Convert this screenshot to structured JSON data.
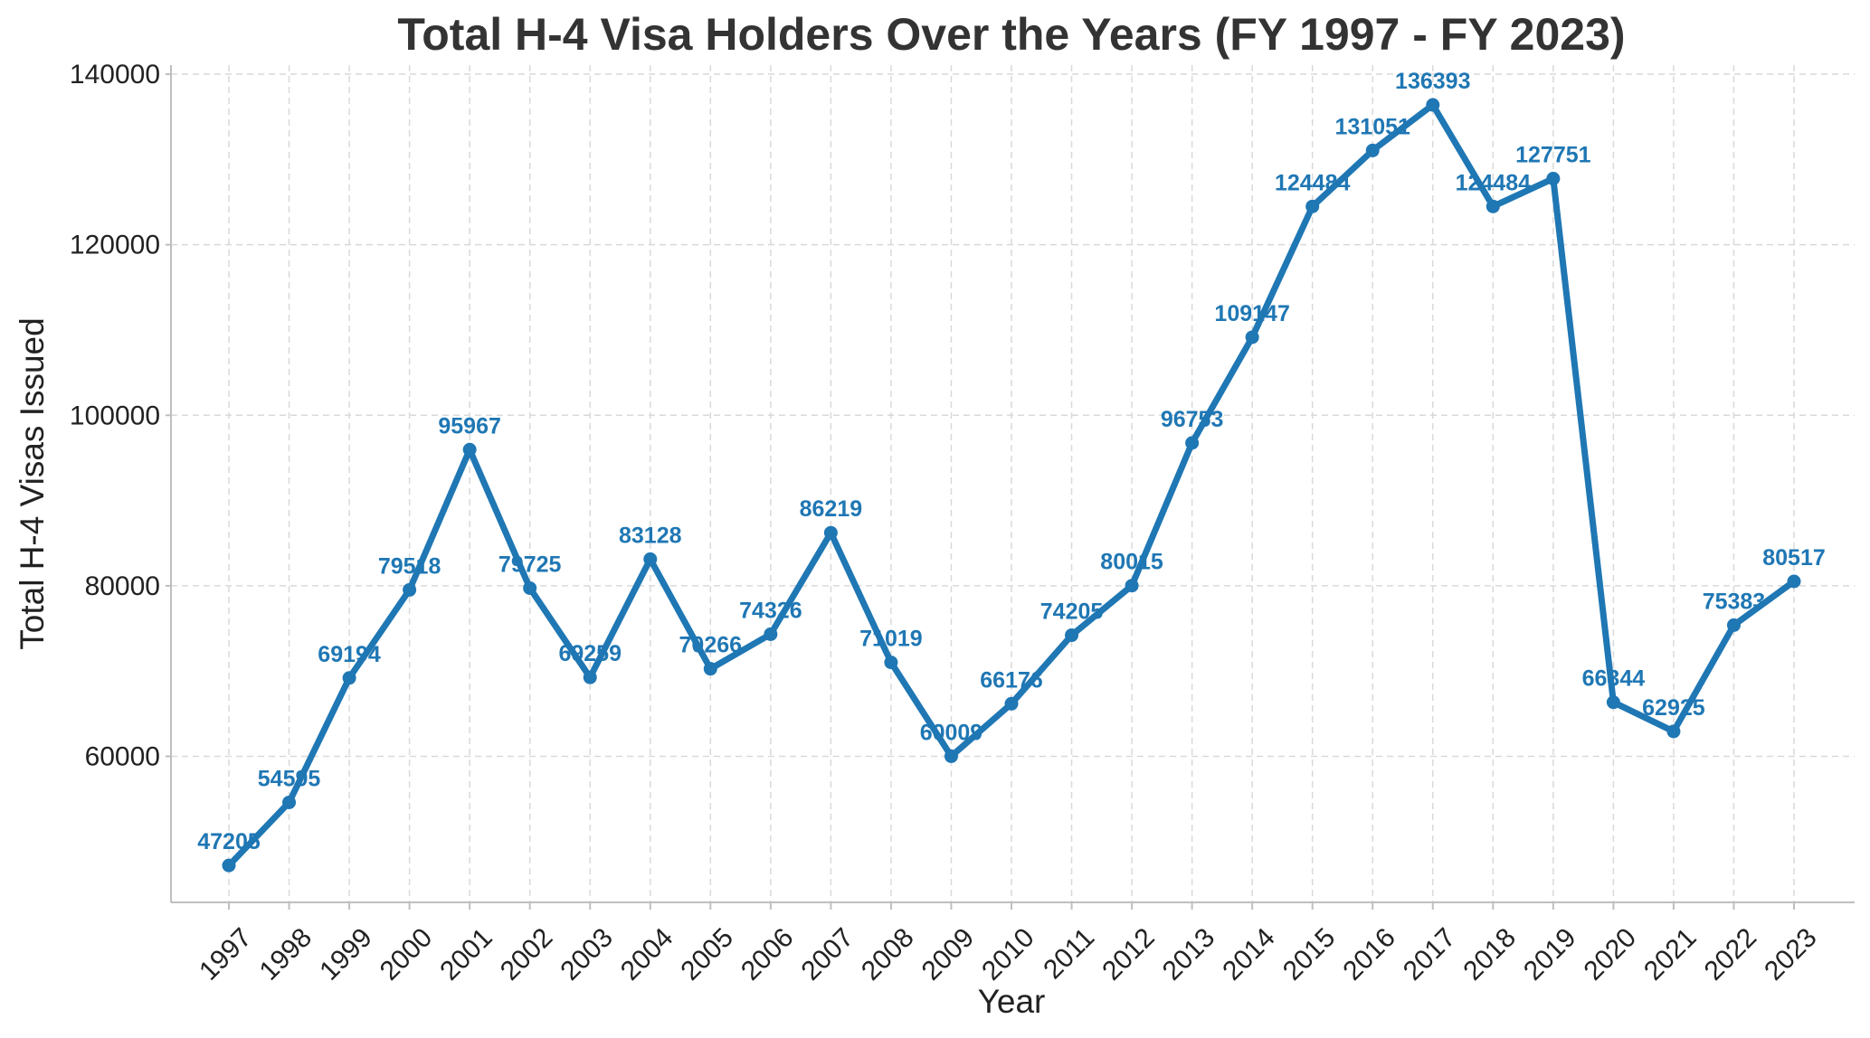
{
  "chart_data": {
    "type": "line",
    "title": "Total H-4 Visa Holders Over the Years (FY 1997 - FY 2023)",
    "xlabel": "Year",
    "ylabel": "Total H-4 Visas Issued",
    "x": [
      "1997",
      "1998",
      "1999",
      "2000",
      "2001",
      "2002",
      "2003",
      "2004",
      "2005",
      "2006",
      "2007",
      "2008",
      "2009",
      "2010",
      "2011",
      "2012",
      "2013",
      "2014",
      "2015",
      "2016",
      "2017",
      "2018",
      "2019",
      "2020",
      "2021",
      "2022",
      "2023"
    ],
    "series": [
      {
        "values": [
          47205,
          54595,
          69194,
          79518,
          95967,
          79725,
          69259,
          83128,
          70266,
          74326,
          86219,
          71019,
          60009,
          66176,
          74205,
          80015,
          96753,
          109147,
          124484,
          131051,
          136393,
          124484,
          127751,
          66344,
          62925,
          75383,
          80517
        ],
        "labels": [
          "47205",
          "54595",
          "69194",
          "79518",
          "95967",
          "79725",
          "69259",
          "83128",
          "70266",
          "74326",
          "86219",
          "71019",
          "60009",
          "66176",
          "74205",
          "80015",
          "96753",
          "109147",
          "124484",
          "131051",
          "136393",
          "124484",
          "127751",
          "66344",
          "62925",
          "75383",
          "80517"
        ]
      }
    ],
    "yticks": [
      "60000",
      "80000",
      "100000",
      "120000",
      "140000"
    ],
    "ytick_values": [
      60000,
      80000,
      100000,
      120000,
      140000
    ],
    "ylim": [
      42877,
      140000
    ],
    "grid": true,
    "legend": false,
    "line_color": "#1f77b4",
    "label_color": "#1f77b4"
  }
}
